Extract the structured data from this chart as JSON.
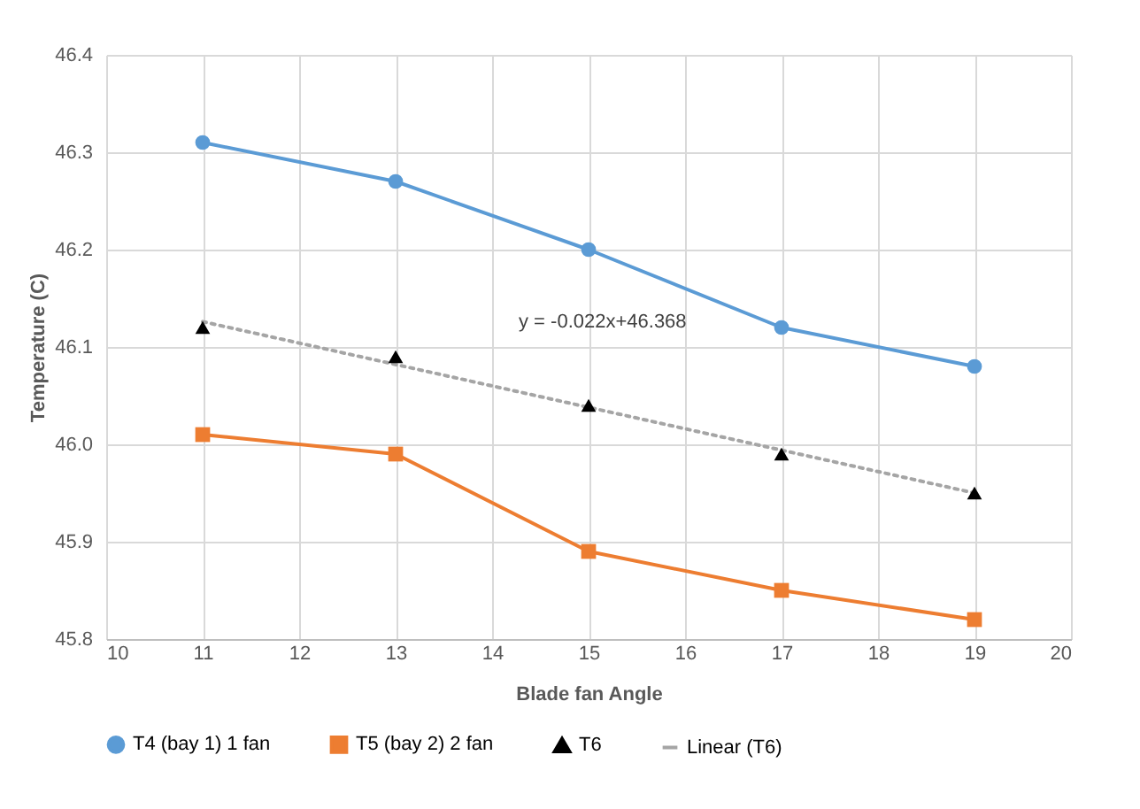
{
  "chart_data": {
    "type": "line",
    "xlabel": "Blade fan Angle",
    "ylabel": "Temperature (C)",
    "x": [
      11,
      13,
      15,
      17,
      19
    ],
    "series": [
      {
        "name": "T4 (bay 1) 1 fan",
        "color": "#5b9bd5",
        "marker": "circle",
        "line_style": "solid",
        "values": [
          46.31,
          46.27,
          46.2,
          46.12,
          46.08
        ]
      },
      {
        "name": "T5 (bay 2) 2 fan",
        "color": "#ed7d31",
        "marker": "square",
        "line_style": "solid",
        "values": [
          46.01,
          45.99,
          45.89,
          45.85,
          45.82
        ]
      },
      {
        "name": "T6",
        "type": "scatter",
        "color": "#000000",
        "marker": "triangle",
        "values": [
          46.12,
          46.09,
          46.04,
          45.99,
          45.95
        ]
      },
      {
        "name": "Linear (T6)",
        "type": "line",
        "color": "#a5a5a5",
        "marker": "none",
        "line_style": "dotted",
        "x": [
          11,
          19
        ],
        "values": [
          46.126,
          45.95
        ]
      }
    ],
    "annotations": [
      "y = -0.022x+46.368"
    ],
    "xlim": [
      10,
      20
    ],
    "xticks": [
      10,
      11,
      12,
      13,
      14,
      15,
      16,
      17,
      18,
      19,
      20
    ],
    "ylim": [
      45.8,
      46.4
    ],
    "yticks": [
      45.8,
      45.9,
      {
        "value": 46,
        "label": "46.0"
      },
      46.1,
      46.2,
      46.3,
      46.4
    ],
    "grid": true,
    "legend": "bottom"
  }
}
